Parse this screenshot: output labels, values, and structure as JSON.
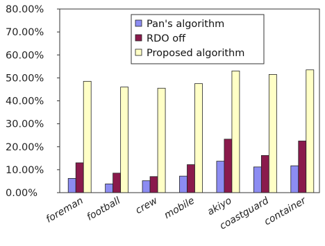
{
  "chart_data": {
    "type": "bar",
    "title": "",
    "xlabel": "",
    "ylabel": "",
    "categories": [
      "foreman",
      "football",
      "crew",
      "mobile",
      "akiyo",
      "coastguard",
      "container"
    ],
    "series": [
      {
        "name": "Pan's algorithm",
        "color": "#8c8cf2",
        "values": [
          0.062,
          0.038,
          0.052,
          0.072,
          0.137,
          0.112,
          0.117
        ]
      },
      {
        "name": "RDO off",
        "color": "#8a1a4c",
        "values": [
          0.13,
          0.085,
          0.07,
          0.122,
          0.233,
          0.162,
          0.225
        ]
      },
      {
        "name": "Proposed algorithm",
        "color": "#ffffc6",
        "values": [
          0.485,
          0.46,
          0.455,
          0.475,
          0.53,
          0.515,
          0.535
        ]
      }
    ],
    "ylim": [
      0,
      0.8
    ],
    "yticks": [
      0,
      0.1,
      0.2,
      0.3,
      0.4,
      0.5,
      0.6,
      0.7,
      0.8
    ],
    "ytick_labels": [
      "0.00%",
      "10.00%",
      "20.00%",
      "30.00%",
      "40.00%",
      "50.00%",
      "60.00%",
      "70.00%",
      "80.00%"
    ],
    "legend_position": "top-right",
    "grid": false
  }
}
